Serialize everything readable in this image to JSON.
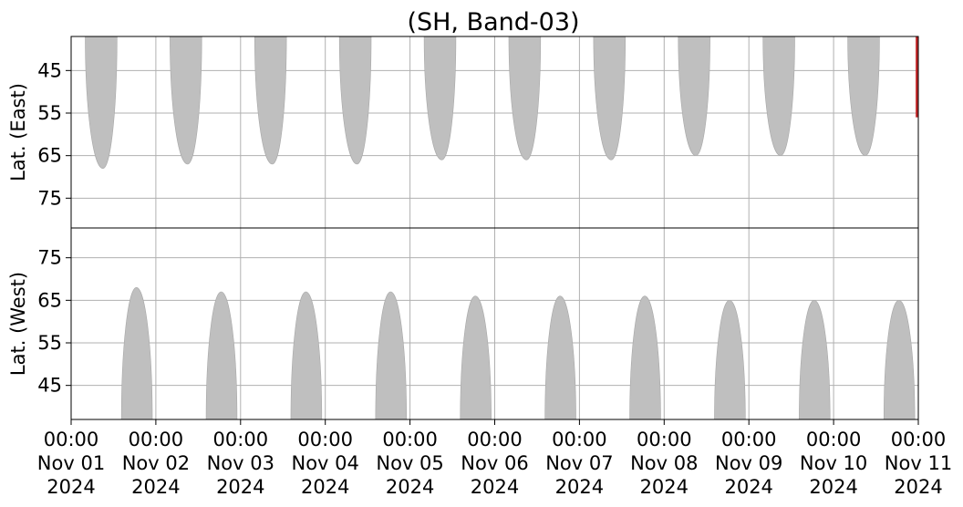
{
  "chart_data": {
    "type": "heatmap",
    "title": "(SH, Band-03)",
    "x_tick_labels": [
      [
        "00:00",
        "Nov 01",
        "2024"
      ],
      [
        "00:00",
        "Nov 02",
        "2024"
      ],
      [
        "00:00",
        "Nov 03",
        "2024"
      ],
      [
        "00:00",
        "Nov 04",
        "2024"
      ],
      [
        "00:00",
        "Nov 05",
        "2024"
      ],
      [
        "00:00",
        "Nov 06",
        "2024"
      ],
      [
        "00:00",
        "Nov 07",
        "2024"
      ],
      [
        "00:00",
        "Nov 08",
        "2024"
      ],
      [
        "00:00",
        "Nov 09",
        "2024"
      ],
      [
        "00:00",
        "Nov 10",
        "2024"
      ],
      [
        "00:00",
        "Nov 11",
        "2024"
      ]
    ],
    "xlim": [
      "2024-11-01 00:00",
      "2024-11-11 00:00"
    ],
    "panels": [
      {
        "name": "east",
        "ylabel": "Lat. (East)",
        "ylim": [
          37,
          82
        ],
        "y_inverted": true,
        "yticks": [
          45,
          55,
          65,
          75
        ],
        "grid": true,
        "coverage_color": "#bfbfbf",
        "highlight_color": "#c0292b",
        "coverage_lobes": [
          {
            "start": "2024-11-01 04:00",
            "end": "2024-11-01 13:00",
            "peak": "2024-11-01 09:00",
            "max_lat": 68
          },
          {
            "start": "2024-11-02 04:00",
            "end": "2024-11-02 13:00",
            "peak": "2024-11-02 09:00",
            "max_lat": 67
          },
          {
            "start": "2024-11-03 04:00",
            "end": "2024-11-03 13:00",
            "peak": "2024-11-03 09:00",
            "max_lat": 67
          },
          {
            "start": "2024-11-04 04:00",
            "end": "2024-11-04 13:00",
            "peak": "2024-11-04 09:00",
            "max_lat": 67
          },
          {
            "start": "2024-11-05 04:00",
            "end": "2024-11-05 13:00",
            "peak": "2024-11-05 09:00",
            "max_lat": 66
          },
          {
            "start": "2024-11-06 04:00",
            "end": "2024-11-06 13:00",
            "peak": "2024-11-06 09:00",
            "max_lat": 66
          },
          {
            "start": "2024-11-07 04:00",
            "end": "2024-11-07 13:00",
            "peak": "2024-11-07 09:00",
            "max_lat": 66
          },
          {
            "start": "2024-11-08 04:00",
            "end": "2024-11-08 13:00",
            "peak": "2024-11-08 09:00",
            "max_lat": 65
          },
          {
            "start": "2024-11-09 04:00",
            "end": "2024-11-09 13:00",
            "peak": "2024-11-09 09:00",
            "max_lat": 65
          },
          {
            "start": "2024-11-10 04:00",
            "end": "2024-11-10 13:00",
            "peak": "2024-11-10 09:00",
            "max_lat": 65
          }
        ],
        "highlight_segments": [
          {
            "start": "2024-11-10 23:15",
            "end": "2024-11-11 00:00",
            "lat_min": 37,
            "lat_max": 56
          }
        ]
      },
      {
        "name": "west",
        "ylabel": "Lat. (West)",
        "ylim": [
          82,
          37
        ],
        "y_inverted": false,
        "yticks": [
          45,
          55,
          65,
          75
        ],
        "grid": true,
        "coverage_color": "#bfbfbf",
        "coverage_lobes": [
          {
            "start": "2024-11-01 14:15",
            "end": "2024-11-01 23:00",
            "peak": "2024-11-01 18:30",
            "max_lat": 68
          },
          {
            "start": "2024-11-02 14:15",
            "end": "2024-11-02 23:00",
            "peak": "2024-11-02 18:30",
            "max_lat": 67
          },
          {
            "start": "2024-11-03 14:15",
            "end": "2024-11-03 23:00",
            "peak": "2024-11-03 18:30",
            "max_lat": 67
          },
          {
            "start": "2024-11-04 14:15",
            "end": "2024-11-04 23:00",
            "peak": "2024-11-04 18:30",
            "max_lat": 67
          },
          {
            "start": "2024-11-05 14:15",
            "end": "2024-11-05 23:00",
            "peak": "2024-11-05 18:30",
            "max_lat": 66
          },
          {
            "start": "2024-11-06 14:15",
            "end": "2024-11-06 23:00",
            "peak": "2024-11-06 18:30",
            "max_lat": 66
          },
          {
            "start": "2024-11-07 14:15",
            "end": "2024-11-07 23:00",
            "peak": "2024-11-07 18:30",
            "max_lat": 66
          },
          {
            "start": "2024-11-08 14:15",
            "end": "2024-11-08 23:00",
            "peak": "2024-11-08 18:30",
            "max_lat": 65
          },
          {
            "start": "2024-11-09 14:15",
            "end": "2024-11-09 23:00",
            "peak": "2024-11-09 18:30",
            "max_lat": 65
          },
          {
            "start": "2024-11-10 14:15",
            "end": "2024-11-10 23:00",
            "peak": "2024-11-10 18:30",
            "max_lat": 65
          }
        ]
      }
    ]
  }
}
